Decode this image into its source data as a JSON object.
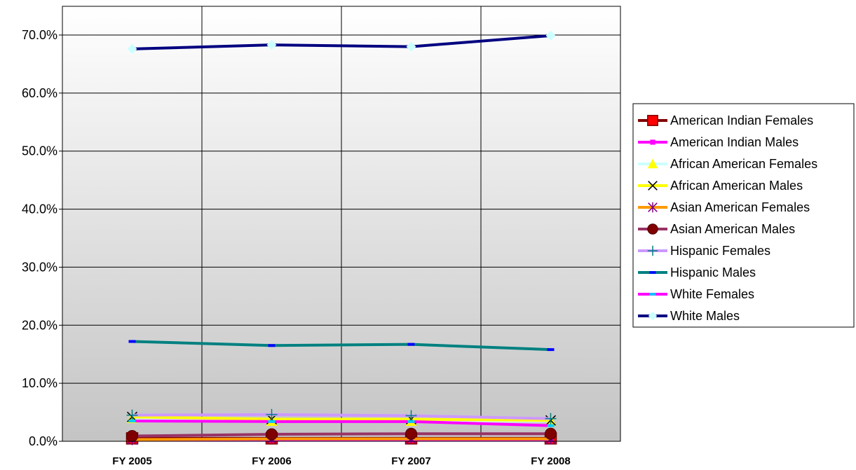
{
  "chart_data": {
    "type": "line",
    "title": "",
    "xlabel": "",
    "ylabel": "",
    "categories": [
      "FY 2005",
      "FY 2006",
      "FY 2007",
      "FY 2008"
    ],
    "y_ticks": [
      "0.0%",
      "10.0%",
      "20.0%",
      "30.0%",
      "40.0%",
      "50.0%",
      "60.0%",
      "70.0%"
    ],
    "ylim": [
      0,
      70
    ],
    "y_unit": "percent",
    "grid": true,
    "legend_position": "right",
    "series": [
      {
        "name": "American Indian Females",
        "values": [
          0.5,
          0.5,
          0.5,
          0.5
        ],
        "color": "#800000",
        "marker": "square",
        "marker_color": "#ff0000"
      },
      {
        "name": "American Indian Males",
        "values": [
          0.3,
          0.3,
          0.3,
          0.3
        ],
        "color": "#ff00ff",
        "marker": "small-square",
        "marker_color": "#ff00ff"
      },
      {
        "name": "African American Females",
        "values": [
          4.0,
          3.5,
          3.5,
          3.5
        ],
        "color": "#ccffff",
        "marker": "triangle",
        "marker_color": "#ffff00"
      },
      {
        "name": "African American Males",
        "values": [
          4.2,
          3.8,
          3.8,
          3.6
        ],
        "color": "#ffff00",
        "marker": "x",
        "marker_color": "#000000"
      },
      {
        "name": "Asian American Females",
        "values": [
          0.3,
          0.4,
          0.4,
          0.4
        ],
        "color": "#ff9900",
        "marker": "star",
        "marker_color": "#800080"
      },
      {
        "name": "Asian American Males",
        "values": [
          0.9,
          1.2,
          1.3,
          1.3
        ],
        "color": "#993366",
        "marker": "circle",
        "marker_color": "#800000"
      },
      {
        "name": "Hispanic Females",
        "values": [
          4.5,
          4.6,
          4.4,
          3.9
        ],
        "color": "#cc99ff",
        "marker": "plus",
        "marker_color": "#008080"
      },
      {
        "name": "Hispanic Males",
        "values": [
          17.2,
          16.5,
          16.7,
          15.8
        ],
        "color": "#008080",
        "marker": "dash",
        "marker_color": "#0000ff"
      },
      {
        "name": "White Females",
        "values": [
          3.5,
          3.4,
          3.4,
          2.7
        ],
        "color": "#ff00ff",
        "marker": "dash",
        "marker_color": "#00ccff"
      },
      {
        "name": "White Males",
        "values": [
          67.6,
          68.3,
          68.0,
          69.9
        ],
        "color": "#000080",
        "marker": "diamond",
        "marker_color": "#ccffff"
      }
    ]
  }
}
